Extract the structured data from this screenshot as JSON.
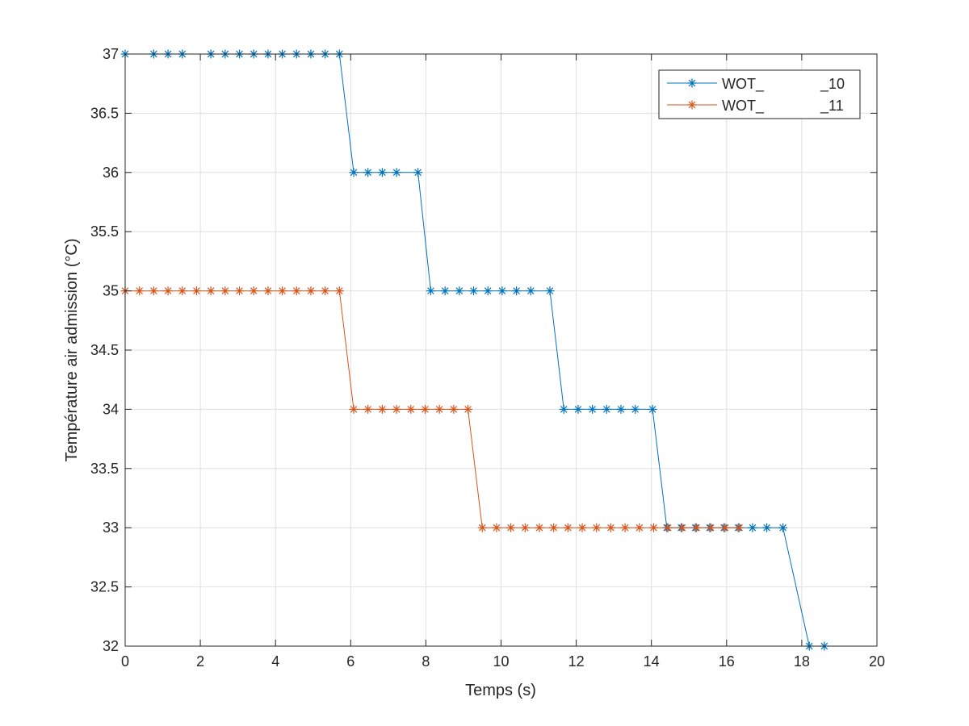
{
  "chart_data": {
    "type": "line",
    "title": "",
    "xlabel": "Temps (s)",
    "ylabel": "Température air admission (°C)",
    "xlim": [
      0,
      20
    ],
    "ylim": [
      32,
      37
    ],
    "xticks": [
      0,
      2,
      4,
      6,
      8,
      10,
      12,
      14,
      16,
      18,
      20
    ],
    "yticks": [
      32,
      32.5,
      33,
      33.5,
      34,
      34.5,
      35,
      35.5,
      36,
      36.5,
      37
    ],
    "xtick_labels": [
      "0",
      "2",
      "4",
      "6",
      "8",
      "10",
      "12",
      "14",
      "16",
      "18",
      "20"
    ],
    "ytick_labels": [
      "32",
      "32.5",
      "33",
      "33.5",
      "34",
      "34.5",
      "35",
      "35.5",
      "36",
      "36.5",
      "37"
    ],
    "grid": true,
    "legend_position": "top-right",
    "marker": "asterisk",
    "series": [
      {
        "name": "WOT_              _10",
        "color": "#0072BD",
        "x": [
          0,
          0.76,
          1.14,
          1.52,
          2.28,
          2.66,
          3.04,
          3.42,
          3.8,
          4.18,
          4.56,
          4.94,
          5.32,
          5.7,
          6.08,
          6.46,
          6.84,
          7.22,
          7.79,
          8.13,
          8.51,
          8.89,
          9.27,
          9.65,
          10.03,
          10.41,
          10.79,
          11.3,
          11.67,
          12.05,
          12.43,
          12.81,
          13.19,
          13.57,
          14.03,
          14.41,
          14.79,
          15.17,
          15.55,
          15.93,
          16.31,
          16.69,
          17.07,
          17.5,
          18.2,
          18.6
        ],
        "y": [
          37,
          37,
          37,
          37,
          37,
          37,
          37,
          37,
          37,
          37,
          37,
          37,
          37,
          37,
          36,
          36,
          36,
          36,
          36,
          35,
          35,
          35,
          35,
          35,
          35,
          35,
          35,
          35,
          34,
          34,
          34,
          34,
          34,
          34,
          34,
          33,
          33,
          33,
          33,
          33,
          33,
          33,
          33,
          33,
          32,
          32
        ]
      },
      {
        "name": "WOT_              _11",
        "color": "#D95319",
        "x": [
          0,
          0.38,
          0.76,
          1.14,
          1.52,
          1.9,
          2.28,
          2.66,
          3.04,
          3.42,
          3.8,
          4.18,
          4.56,
          4.94,
          5.32,
          5.7,
          6.08,
          6.46,
          6.84,
          7.22,
          7.6,
          7.98,
          8.36,
          8.74,
          9.12,
          9.5,
          9.88,
          10.26,
          10.64,
          11.02,
          11.4,
          11.78,
          12.16,
          12.54,
          12.92,
          13.3,
          13.68,
          14.06,
          14.44,
          14.82,
          15.2,
          15.58,
          15.96,
          16.34
        ],
        "y": [
          35,
          35,
          35,
          35,
          35,
          35,
          35,
          35,
          35,
          35,
          35,
          35,
          35,
          35,
          35,
          35,
          34,
          34,
          34,
          34,
          34,
          34,
          34,
          34,
          34,
          33,
          33,
          33,
          33,
          33,
          33,
          33,
          33,
          33,
          33,
          33,
          33,
          33,
          33,
          33,
          33,
          33,
          33,
          33
        ]
      }
    ]
  }
}
